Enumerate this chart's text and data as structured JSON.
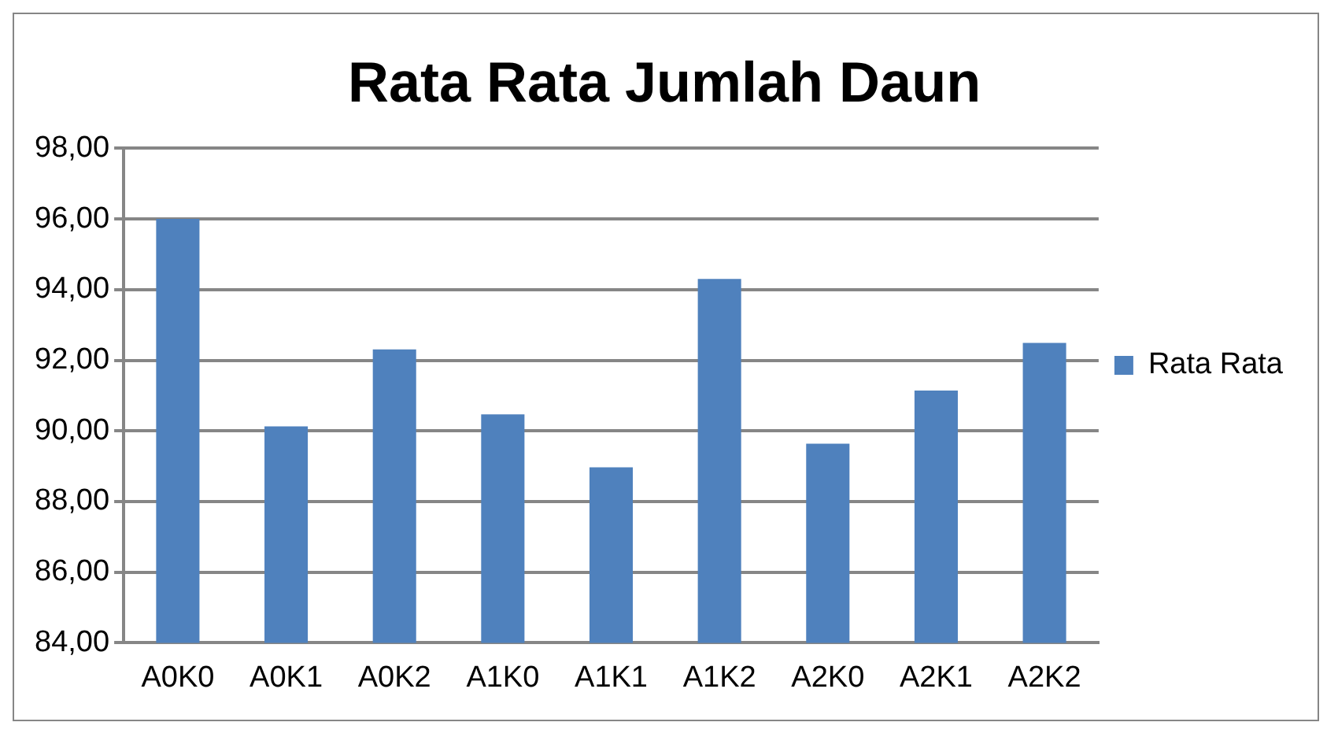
{
  "chart_data": {
    "type": "bar",
    "title": "Rata Rata Jumlah Daun",
    "categories": [
      "A0K0",
      "A0K1",
      "A0K2",
      "A1K0",
      "A1K1",
      "A1K2",
      "A2K0",
      "A2K1",
      "A2K2"
    ],
    "series": [
      {
        "name": "Rata Rata",
        "color": "#4f81bd",
        "values": [
          96.0,
          90.13,
          92.31,
          90.47,
          88.97,
          94.3,
          89.64,
          91.14,
          92.49
        ]
      }
    ],
    "ylim": [
      84,
      98
    ],
    "yticks": [
      {
        "value": 84,
        "label": "84,00"
      },
      {
        "value": 86,
        "label": "86,00"
      },
      {
        "value": 88,
        "label": "88,00"
      },
      {
        "value": 90,
        "label": "90,00"
      },
      {
        "value": 92,
        "label": "92,00"
      },
      {
        "value": 94,
        "label": "94,00"
      },
      {
        "value": 96,
        "label": "96,00"
      },
      {
        "value": 98,
        "label": "98,00"
      }
    ],
    "grid": "y",
    "legend": "right"
  }
}
